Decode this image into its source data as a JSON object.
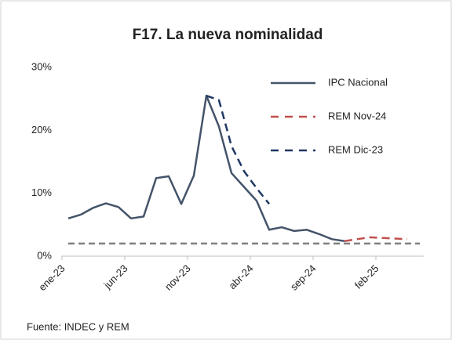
{
  "chart_data": {
    "type": "line",
    "title": "F17. La nueva nominalidad",
    "source": "Fuente: INDEC y REM",
    "categories": [
      "ene-23",
      null,
      null,
      null,
      null,
      "jun-23",
      null,
      null,
      null,
      null,
      "nov-23",
      null,
      null,
      null,
      null,
      "abr-24",
      null,
      null,
      null,
      null,
      "sep-24",
      null,
      null,
      null,
      null,
      "feb-25",
      null,
      null,
      null
    ],
    "series": [
      {
        "name": "IPC Nacional",
        "color": "#44546a",
        "dash": false,
        "values": [
          6.0,
          6.6,
          7.7,
          8.4,
          7.8,
          6.0,
          6.3,
          12.4,
          12.7,
          8.3,
          12.8,
          25.5,
          20.6,
          13.2,
          11.0,
          8.8,
          4.2,
          4.6,
          4.0,
          4.2,
          3.5,
          2.7,
          2.4,
          null,
          null,
          null,
          null,
          null,
          null
        ]
      },
      {
        "name": "REM Nov-24",
        "color": "#c0504d",
        "dash": true,
        "values": [
          null,
          null,
          null,
          null,
          null,
          null,
          null,
          null,
          null,
          null,
          null,
          null,
          null,
          null,
          null,
          null,
          null,
          null,
          null,
          null,
          null,
          null,
          2.4,
          2.7,
          3.0,
          2.9,
          2.8,
          2.7,
          null
        ]
      },
      {
        "name": "REM Dic-23",
        "color": "#1f3864",
        "dash": true,
        "values": [
          null,
          null,
          null,
          null,
          null,
          null,
          null,
          null,
          null,
          null,
          null,
          25.5,
          24.8,
          17.5,
          13.5,
          10.8,
          8.3,
          null,
          null,
          null,
          null,
          null,
          null,
          null,
          null,
          null,
          null,
          null,
          null
        ]
      }
    ],
    "reference_line": {
      "value": 2,
      "color": "#808080"
    },
    "ylim": [
      0,
      30
    ],
    "yticks": [
      {
        "value": 0,
        "label": "0%"
      },
      {
        "value": 10,
        "label": "10%"
      },
      {
        "value": 20,
        "label": "20%"
      },
      {
        "value": 30,
        "label": "30%"
      }
    ],
    "grid": false,
    "legend": "upper right"
  }
}
